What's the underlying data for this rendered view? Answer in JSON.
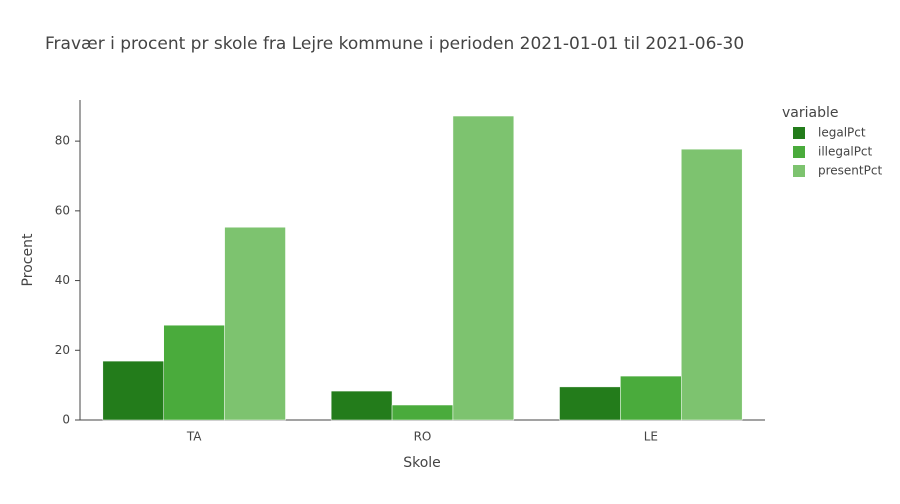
{
  "chart_data": {
    "type": "bar",
    "title": "Fravær i procent pr skole fra Lejre kommune i perioden 2021-01-01 til 2021-06-30",
    "x_label": "Skole",
    "y_label": "Procent",
    "legend_title": "variable",
    "categories": [
      "TA",
      "RO",
      "LE"
    ],
    "series": [
      {
        "name": "legalPct",
        "color": "#237c1b",
        "values": [
          16.9,
          8.3,
          9.5
        ]
      },
      {
        "name": "illegalPct",
        "color": "#4aab3c",
        "values": [
          27.2,
          4.3,
          12.6
        ]
      },
      {
        "name": "presentPct",
        "color": "#7dc36f",
        "values": [
          55.3,
          87.2,
          77.7
        ]
      }
    ],
    "ylim": [
      0,
      91.8
    ],
    "yticks": [
      0,
      20,
      40,
      60,
      80
    ],
    "grid": false,
    "legend": "right"
  }
}
